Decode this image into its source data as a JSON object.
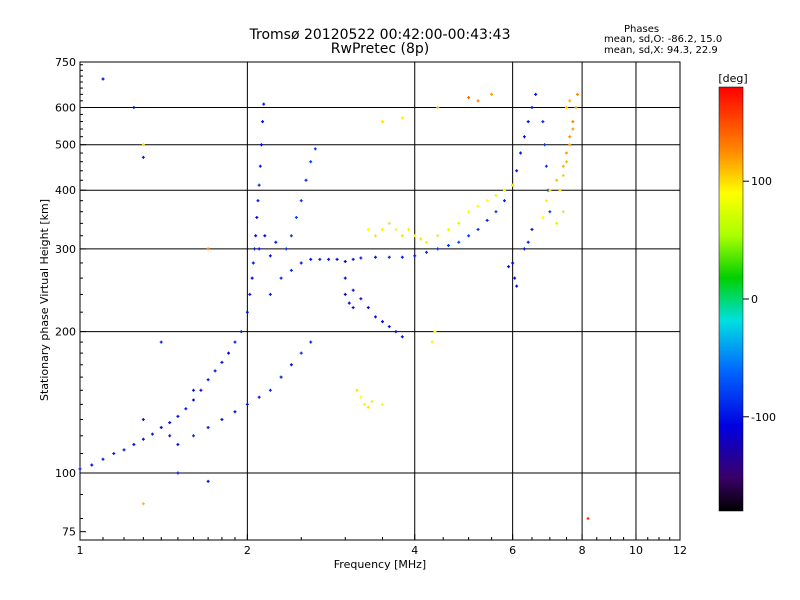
{
  "header": {
    "title_line1": "Tromsø 20120522 00:42:00-00:43:43",
    "title_line2": "RwPretec (8p)",
    "stats_label": "Phases",
    "stats_o": "mean, sd,O: -86.2, 15.0",
    "stats_x": "mean, sd,X:  94.3, 22.9"
  },
  "colorbar": {
    "unit": "[deg]",
    "range": [
      -180,
      180
    ],
    "ticks": [
      "100",
      "0",
      "-100"
    ],
    "tick_values": [
      100,
      0,
      -100
    ]
  },
  "chart_data": {
    "type": "scatter",
    "xlabel": "Frequency [MHz]",
    "ylabel": "Stationary phase Virtual Height [km]",
    "x_scale": "log",
    "y_scale": "log",
    "xlim": [
      1,
      12
    ],
    "ylim": [
      72,
      750
    ],
    "x_ticks": [
      1,
      2,
      4,
      6,
      8,
      10,
      12
    ],
    "x_tick_labels": [
      "1",
      "2",
      "4",
      "6",
      "8",
      "10",
      "12"
    ],
    "y_ticks": [
      75,
      100,
      200,
      300,
      400,
      500,
      600,
      750
    ],
    "y_tick_labels": [
      "75",
      "100",
      "200",
      "300",
      "400",
      "500",
      "600",
      "750"
    ],
    "grid_x": [
      2,
      4,
      6,
      8,
      10
    ],
    "grid_y": [
      100,
      200,
      300,
      400,
      500,
      600
    ],
    "series": [
      {
        "points": [
          [
            1.0,
            102,
            -100
          ],
          [
            1.05,
            104,
            -105
          ],
          [
            1.1,
            107,
            -100
          ],
          [
            1.15,
            110,
            -95
          ],
          [
            1.2,
            112,
            -100
          ],
          [
            1.25,
            115,
            -105
          ],
          [
            1.3,
            118,
            -100
          ],
          [
            1.35,
            121,
            -95
          ],
          [
            1.4,
            125,
            -100
          ],
          [
            1.45,
            128,
            -105
          ],
          [
            1.5,
            132,
            -100
          ],
          [
            1.55,
            137,
            -95
          ],
          [
            1.6,
            143,
            -100
          ],
          [
            1.65,
            150,
            -105
          ],
          [
            1.7,
            158,
            -100
          ],
          [
            1.75,
            165,
            -95
          ],
          [
            1.8,
            172,
            -100
          ],
          [
            1.85,
            180,
            -110
          ],
          [
            1.9,
            190,
            -100
          ],
          [
            1.95,
            200,
            -95
          ],
          [
            2.0,
            220,
            -105
          ],
          [
            2.02,
            240,
            -100
          ],
          [
            2.04,
            260,
            -110
          ],
          [
            2.05,
            280,
            -100
          ],
          [
            2.06,
            300,
            -95
          ],
          [
            2.07,
            320,
            -100
          ],
          [
            2.08,
            350,
            -105
          ],
          [
            2.09,
            380,
            -100
          ],
          [
            2.1,
            410,
            -95
          ],
          [
            2.11,
            450,
            -100
          ],
          [
            2.12,
            500,
            -110
          ],
          [
            2.13,
            560,
            -100
          ],
          [
            2.14,
            610,
            -95
          ],
          [
            1.5,
            115,
            -100
          ],
          [
            1.6,
            120,
            -90
          ],
          [
            1.7,
            125,
            -95
          ],
          [
            1.8,
            130,
            -100
          ],
          [
            1.9,
            135,
            -105
          ],
          [
            2.0,
            140,
            -95
          ],
          [
            2.1,
            145,
            -100
          ],
          [
            2.2,
            150,
            -90
          ],
          [
            2.3,
            160,
            -95
          ],
          [
            2.4,
            170,
            -100
          ],
          [
            2.5,
            180,
            -85
          ],
          [
            2.6,
            190,
            -90
          ],
          [
            2.2,
            240,
            -95
          ],
          [
            2.3,
            260,
            -90
          ],
          [
            2.4,
            270,
            -85
          ],
          [
            2.5,
            280,
            -95
          ],
          [
            2.6,
            285,
            -100
          ],
          [
            2.7,
            285,
            -90
          ],
          [
            2.8,
            285,
            -95
          ],
          [
            2.9,
            285,
            -100
          ],
          [
            3.0,
            282,
            -105
          ],
          [
            3.1,
            285,
            -95
          ],
          [
            3.2,
            287,
            -100
          ],
          [
            3.4,
            288,
            -95
          ],
          [
            3.6,
            288,
            -90
          ],
          [
            3.8,
            288,
            -95
          ],
          [
            4.0,
            290,
            -100
          ],
          [
            4.2,
            295,
            -90
          ],
          [
            4.4,
            300,
            -85
          ],
          [
            4.6,
            305,
            -80
          ],
          [
            4.8,
            310,
            -75
          ],
          [
            5.0,
            320,
            -80
          ],
          [
            5.2,
            330,
            -85
          ],
          [
            5.4,
            345,
            -90
          ],
          [
            5.6,
            360,
            -85
          ],
          [
            5.8,
            380,
            -95
          ],
          [
            6.0,
            410,
            -100
          ],
          [
            6.1,
            440,
            -95
          ],
          [
            6.2,
            480,
            -100
          ],
          [
            6.3,
            520,
            -105
          ],
          [
            6.4,
            560,
            -100
          ],
          [
            6.5,
            600,
            -95
          ],
          [
            6.6,
            640,
            -100
          ],
          [
            2.35,
            300,
            -85
          ],
          [
            2.4,
            320,
            -80
          ],
          [
            2.45,
            350,
            -75
          ],
          [
            2.5,
            380,
            -85
          ],
          [
            2.55,
            420,
            -90
          ],
          [
            2.6,
            460,
            -80
          ],
          [
            2.65,
            490,
            -85
          ],
          [
            2.1,
            300,
            -100
          ],
          [
            2.15,
            320,
            -110
          ],
          [
            2.2,
            290,
            -105
          ],
          [
            2.25,
            310,
            -100
          ],
          [
            3.0,
            260,
            -100
          ],
          [
            3.1,
            245,
            -105
          ],
          [
            3.2,
            235,
            -100
          ],
          [
            3.3,
            225,
            -110
          ],
          [
            3.4,
            215,
            -100
          ],
          [
            3.5,
            210,
            -105
          ],
          [
            3.6,
            205,
            -100
          ],
          [
            3.7,
            200,
            -105
          ],
          [
            3.8,
            195,
            -100
          ],
          [
            3.0,
            240,
            -110
          ],
          [
            3.05,
            230,
            -105
          ],
          [
            3.1,
            225,
            -100
          ],
          [
            6.8,
            560,
            -90
          ],
          [
            6.85,
            500,
            -80
          ],
          [
            6.9,
            450,
            -85
          ],
          [
            6.95,
            400,
            -90
          ],
          [
            7.0,
            360,
            -80
          ],
          [
            6.5,
            330,
            -100
          ],
          [
            6.4,
            310,
            -95
          ],
          [
            6.3,
            300,
            -100
          ],
          [
            6.0,
            280,
            -110
          ],
          [
            5.9,
            275,
            -100
          ],
          [
            6.05,
            260,
            -105
          ],
          [
            6.1,
            250,
            -100
          ],
          [
            1.25,
            600,
            -100
          ],
          [
            1.1,
            690,
            -105
          ],
          [
            1.3,
            470,
            -100
          ],
          [
            1.4,
            190,
            -95
          ],
          [
            1.5,
            100,
            -100
          ],
          [
            1.7,
            96,
            -105
          ],
          [
            1.3,
            130,
            -95
          ],
          [
            1.45,
            120,
            -100
          ],
          [
            1.6,
            150,
            -100
          ]
        ]
      },
      {
        "points": [
          [
            3.3,
            330,
            90
          ],
          [
            3.4,
            320,
            100
          ],
          [
            3.5,
            330,
            95
          ],
          [
            3.6,
            340,
            100
          ],
          [
            3.7,
            330,
            85
          ],
          [
            3.8,
            320,
            100
          ],
          [
            3.9,
            330,
            95
          ],
          [
            4.0,
            320,
            90
          ],
          [
            4.1,
            315,
            100
          ],
          [
            4.2,
            310,
            95
          ],
          [
            3.15,
            150,
            100
          ],
          [
            3.2,
            145,
            90
          ],
          [
            3.25,
            140,
            95
          ],
          [
            3.3,
            138,
            100
          ],
          [
            3.35,
            142,
            95
          ],
          [
            3.5,
            140,
            90
          ],
          [
            4.4,
            320,
            70
          ],
          [
            4.6,
            330,
            80
          ],
          [
            4.8,
            340,
            75
          ],
          [
            5.0,
            360,
            90
          ],
          [
            5.2,
            370,
            85
          ],
          [
            5.4,
            380,
            90
          ],
          [
            5.6,
            390,
            80
          ],
          [
            5.8,
            400,
            85
          ],
          [
            6.0,
            410,
            90
          ],
          [
            6.8,
            350,
            90
          ],
          [
            6.9,
            380,
            95
          ],
          [
            7.0,
            400,
            100
          ],
          [
            7.2,
            420,
            110
          ],
          [
            7.4,
            450,
            115
          ],
          [
            7.5,
            480,
            120
          ],
          [
            7.6,
            520,
            125
          ],
          [
            7.7,
            560,
            130
          ],
          [
            7.8,
            600,
            120
          ],
          [
            7.85,
            640,
            125
          ],
          [
            7.3,
            400,
            100
          ],
          [
            7.4,
            430,
            105
          ],
          [
            7.5,
            460,
            110
          ],
          [
            7.6,
            500,
            115
          ],
          [
            7.7,
            540,
            120
          ],
          [
            7.5,
            600,
            110
          ],
          [
            7.6,
            620,
            115
          ],
          [
            4.3,
            190,
            95
          ],
          [
            4.35,
            200,
            90
          ],
          [
            5.0,
            630,
            140
          ],
          [
            5.2,
            620,
            130
          ],
          [
            5.5,
            640,
            120
          ],
          [
            3.5,
            560,
            100
          ],
          [
            3.8,
            570,
            95
          ],
          [
            4.4,
            600,
            110
          ],
          [
            7.4,
            360,
            60
          ],
          [
            7.2,
            340,
            70
          ],
          [
            8.2,
            80,
            160
          ],
          [
            1.3,
            86,
            110
          ],
          [
            1.3,
            500,
            100
          ],
          [
            1.7,
            300,
            130
          ]
        ]
      }
    ]
  },
  "colors": {
    "background": "#ffffff",
    "grid": "#000000"
  }
}
